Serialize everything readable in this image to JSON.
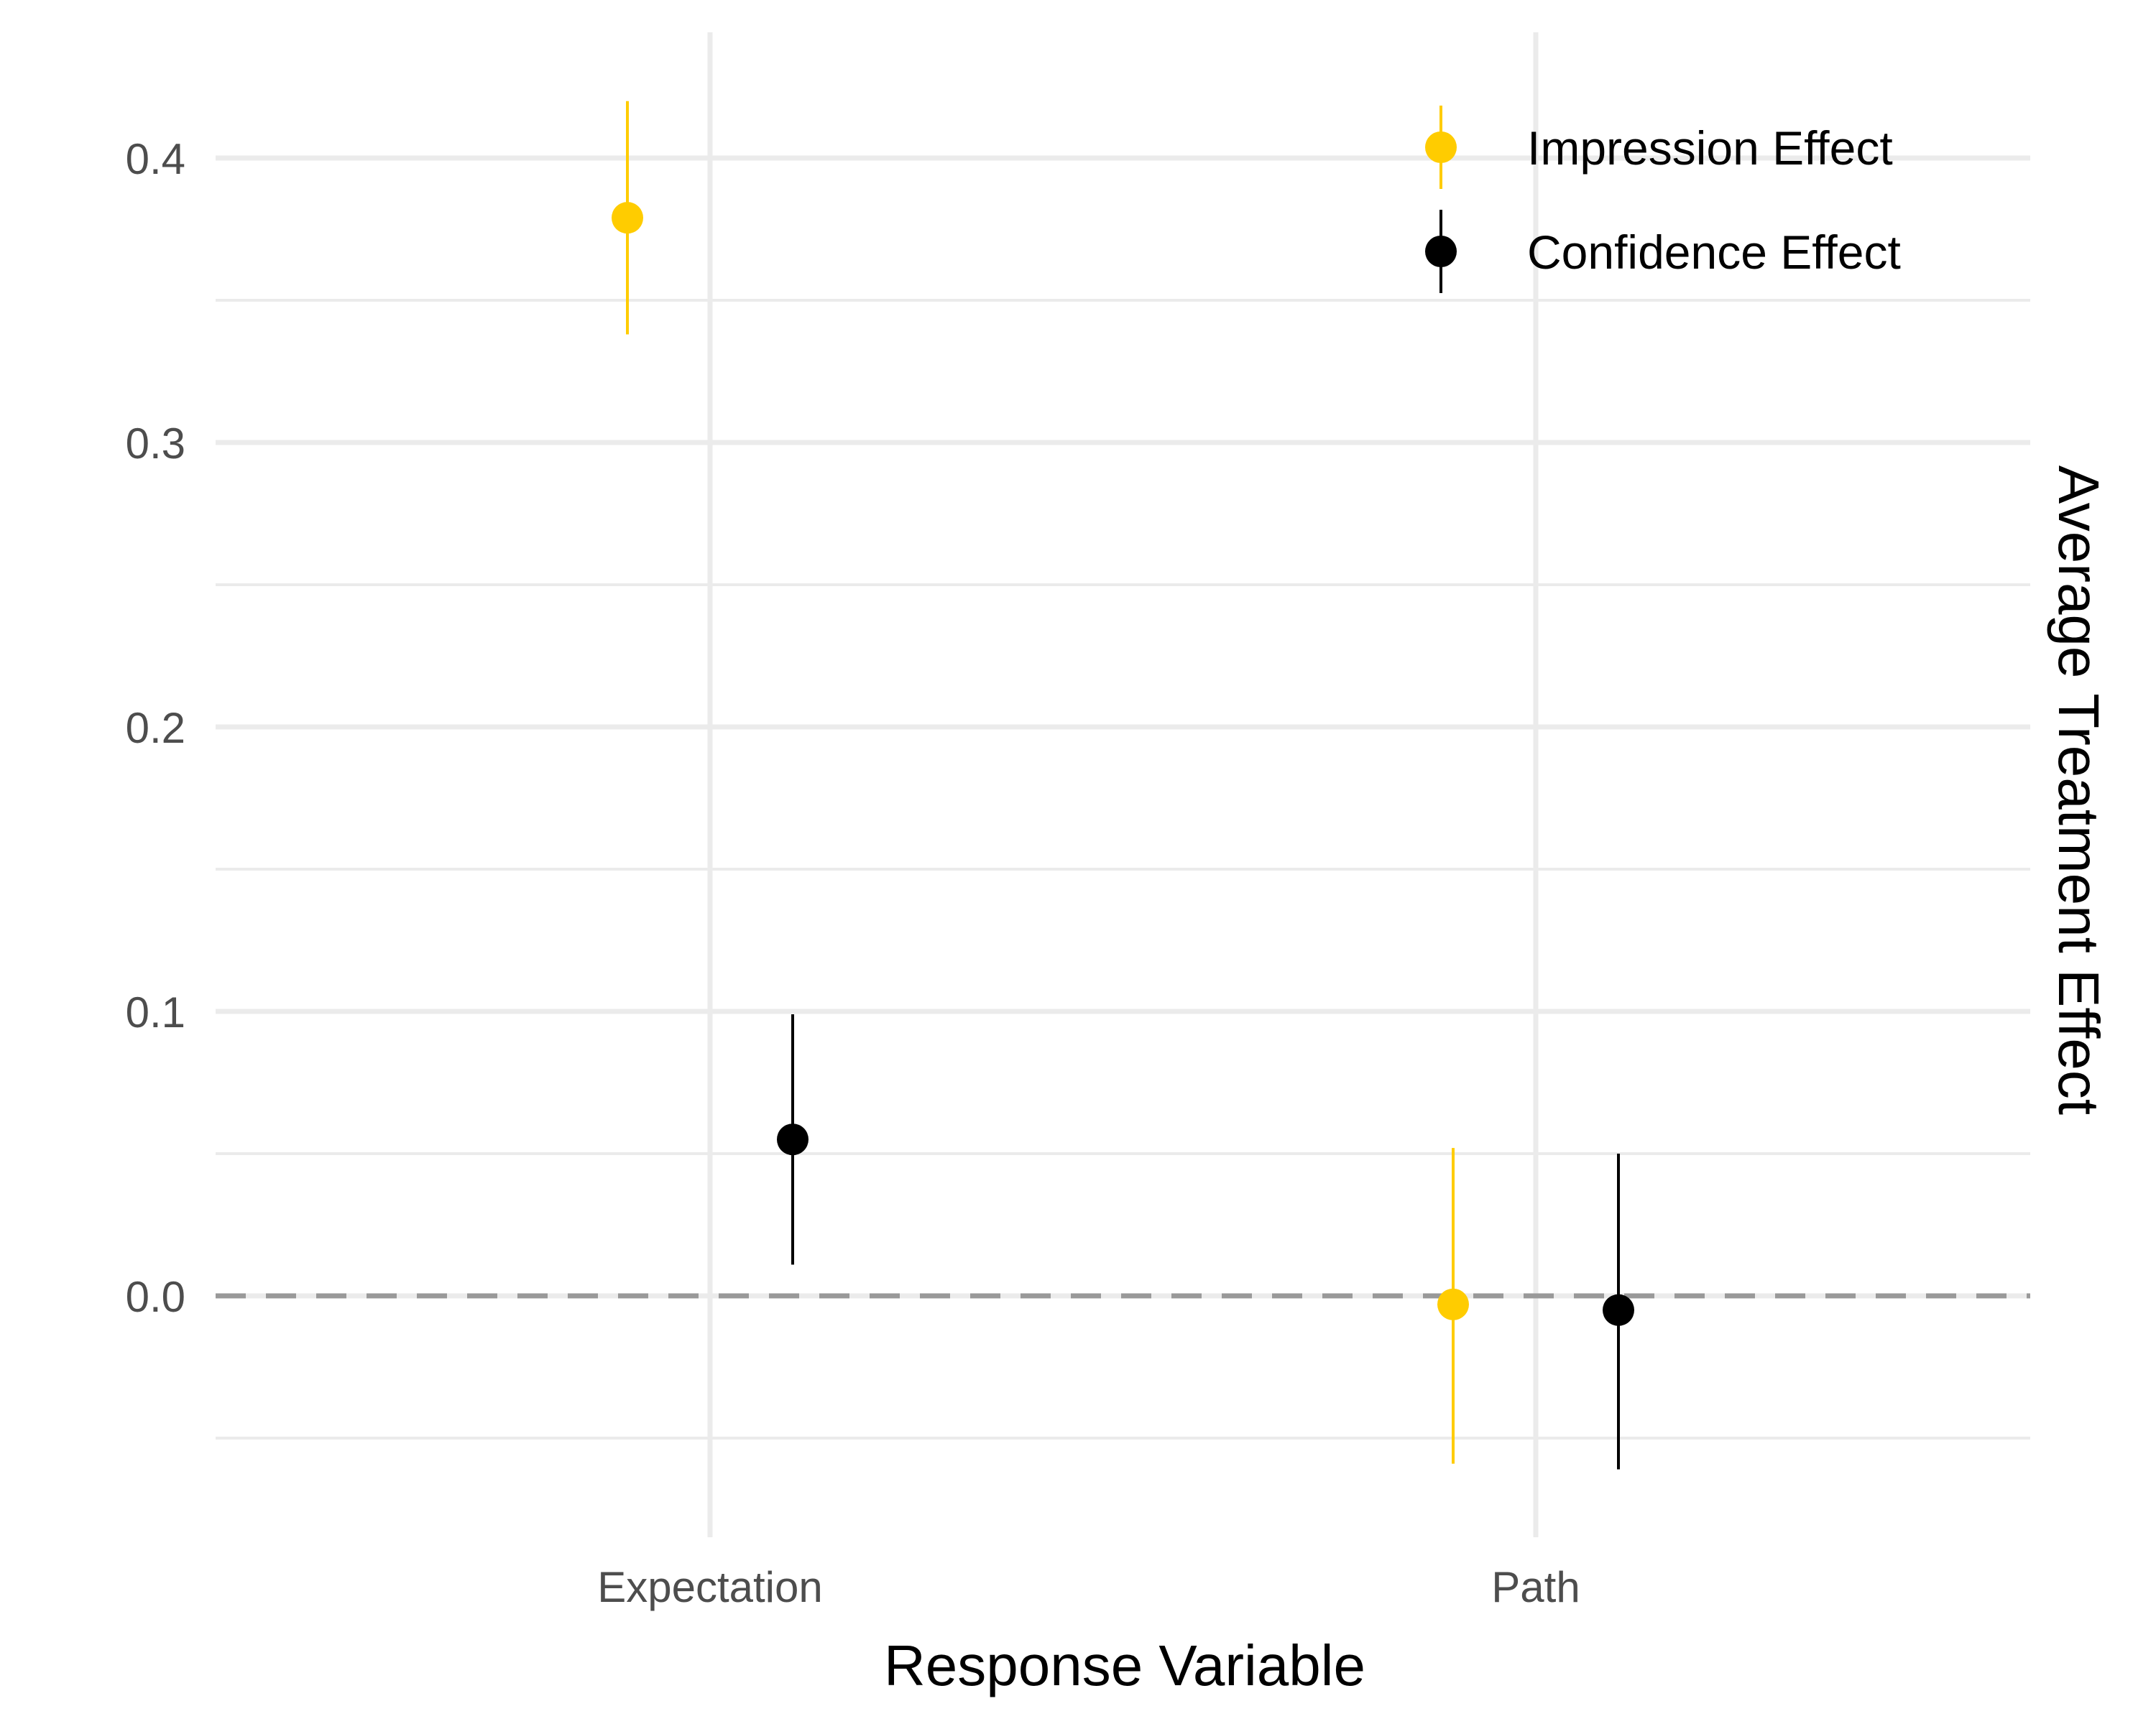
{
  "chart_data": {
    "type": "scatter",
    "title": "",
    "xlabel": "Response Variable",
    "ylabel": "Average Treatment Effect",
    "categories": [
      "Expectation",
      "Path"
    ],
    "ylim": [
      -0.085,
      0.443
    ],
    "yticks": [
      0.0,
      0.1,
      0.2,
      0.3,
      0.4
    ],
    "y_tick_labels": [
      "0.0",
      "0.1",
      "0.2",
      "0.3",
      "0.4"
    ],
    "grid": true,
    "legend_position": "top-right",
    "reference_line": {
      "y": 0.0,
      "style": "dashed",
      "color": "#999999"
    },
    "series": [
      {
        "name": "Impression Effect",
        "color": "#FFCC00",
        "estimates": [
          0.379,
          -0.003
        ],
        "ci_lower": [
          0.338,
          -0.059
        ],
        "ci_upper": [
          0.42,
          0.052
        ]
      },
      {
        "name": "Confidence Effect",
        "color": "#000000",
        "estimates": [
          0.055,
          -0.005
        ],
        "ci_lower": [
          0.011,
          -0.061
        ],
        "ci_upper": [
          0.099,
          0.05
        ]
      }
    ]
  }
}
